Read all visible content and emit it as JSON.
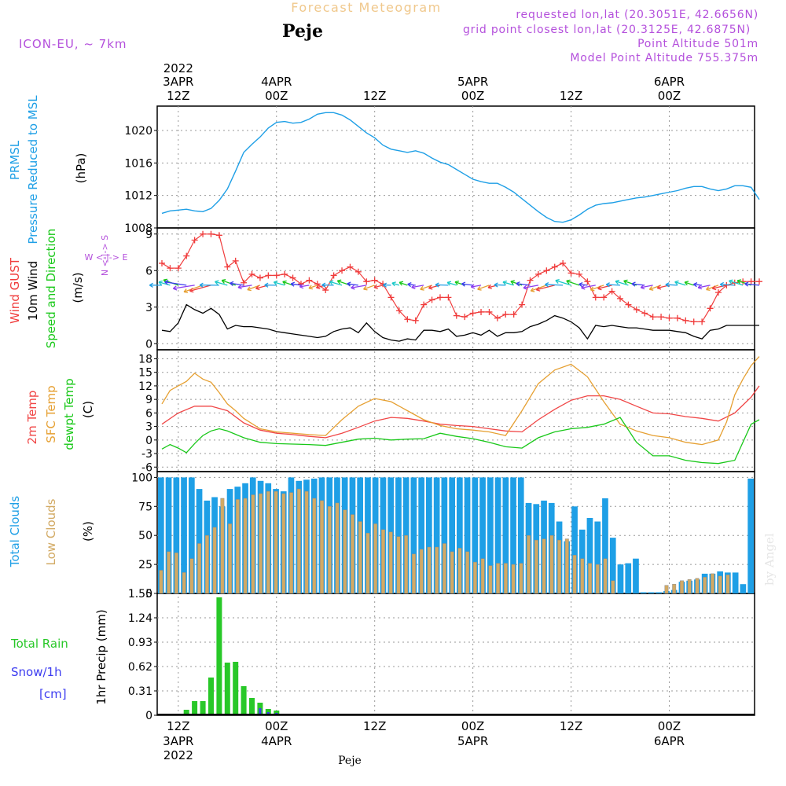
{
  "header": {
    "title": "Forecast Meteogram",
    "location": "Peje",
    "model": "ICON-EU, ~ 7km",
    "requested": "requested lon,lat (20.3051E, 42.6656N)",
    "grid_point": "grid point closest lon,lat (20.3125E, 42.6875N)",
    "point_altitude": "Point Altitude 501m",
    "model_altitude": "Model Point Altitude 755.375m",
    "footer_location": "Peje",
    "watermark": "by Angel"
  },
  "time_axis": {
    "start_hours": 0,
    "end_hours": 73,
    "ticks": [
      {
        "h": 2,
        "time": "12Z",
        "date": "3APR",
        "year": "2022"
      },
      {
        "h": 14,
        "time": "00Z",
        "date": "4APR",
        "year": ""
      },
      {
        "h": 26,
        "time": "12Z",
        "date": "",
        "year": ""
      },
      {
        "h": 38,
        "time": "00Z",
        "date": "5APR",
        "year": ""
      },
      {
        "h": 50,
        "time": "12Z",
        "date": "",
        "year": ""
      },
      {
        "h": 62,
        "time": "00Z",
        "date": "6APR",
        "year": ""
      }
    ]
  },
  "panel_labels": {
    "pressure": {
      "title1": "PRMSL",
      "title2": "Pressure Reduced to MSL",
      "unit": "(hPa)"
    },
    "wind": {
      "title1": "Wind GUST",
      "title2": "10m Wind",
      "title3": "Speed and Direction",
      "unit": "(m/s)",
      "compass": "W <-|-> E",
      "compass_n": "N <-|-> S"
    },
    "temp": {
      "title1": "2m Temp",
      "title2": "SFC Temp",
      "title3": "dewpt Temp",
      "unit": "(C)"
    },
    "clouds": {
      "title1": "Total Clouds",
      "title2": "Low Clouds",
      "unit": "(%)"
    },
    "precip": {
      "title1": "Total  Rain",
      "title2": "Snow/1h",
      "title3": "[cm]",
      "unit": "1hr Precip (mm)"
    }
  },
  "colors": {
    "pressure": "#1E9FE6",
    "gust": "#F03C3C",
    "wind": "#000000",
    "temp2m": "#F04646",
    "sfc": "#E6A032",
    "dewpt": "#19C819",
    "total_clouds": "#1E9FE6",
    "low_clouds": "#D2AA64",
    "rain": "#28C828",
    "snow": "#3C3CF0",
    "title": "#F0C88C",
    "info": "#B450DC"
  },
  "chart_data": [
    {
      "type": "line",
      "name": "pressure",
      "title": "PRMSL Pressure Reduced to MSL",
      "ylabel": "hPa",
      "ylim": [
        1008,
        1023
      ],
      "yticks": [
        1008,
        1012,
        1016,
        1020
      ],
      "x": [
        0,
        1,
        2,
        3,
        4,
        5,
        6,
        7,
        8,
        9,
        10,
        11,
        12,
        13,
        14,
        15,
        16,
        17,
        18,
        19,
        20,
        21,
        22,
        23,
        24,
        25,
        26,
        27,
        28,
        29,
        30,
        31,
        32,
        33,
        34,
        35,
        36,
        37,
        38,
        39,
        40,
        41,
        42,
        43,
        44,
        45,
        46,
        47,
        48,
        49,
        50,
        51,
        52,
        53,
        54,
        55,
        56,
        57,
        58,
        59,
        60,
        61,
        62,
        63,
        64,
        65,
        66,
        67,
        68,
        69,
        70,
        71,
        72,
        73
      ],
      "values": [
        1009.8,
        1010.1,
        1010.2,
        1010.3,
        1010.1,
        1010.0,
        1010.4,
        1011.4,
        1012.8,
        1015.0,
        1017.3,
        1018.3,
        1019.2,
        1020.3,
        1021.0,
        1021.1,
        1020.9,
        1021.0,
        1021.4,
        1022.0,
        1022.2,
        1022.2,
        1021.9,
        1021.3,
        1020.5,
        1019.7,
        1019.1,
        1018.2,
        1017.7,
        1017.5,
        1017.3,
        1017.5,
        1017.2,
        1016.6,
        1016.1,
        1015.8,
        1015.2,
        1014.6,
        1014.0,
        1013.7,
        1013.5,
        1013.5,
        1013.0,
        1012.4,
        1011.6,
        1010.8,
        1010.0,
        1009.3,
        1008.8,
        1008.7,
        1009.0,
        1009.6,
        1010.3,
        1010.8,
        1011.0,
        1011.1,
        1011.3,
        1011.5,
        1011.7,
        1011.8,
        1012.0,
        1012.2,
        1012.4,
        1012.6,
        1012.9,
        1013.1,
        1013.1,
        1012.8,
        1012.6,
        1012.8,
        1013.2,
        1013.2,
        1013.0,
        1011.5
      ]
    },
    {
      "type": "line",
      "name": "wind",
      "title": "Wind GUST / 10m Wind Speed and Direction",
      "ylabel": "m/s",
      "ylim": [
        -0.5,
        9.5
      ],
      "yticks": [
        0,
        3,
        6,
        9
      ],
      "series": [
        {
          "name": "Wind GUST",
          "color": "#F03C3C",
          "marker": "+",
          "x": [
            0,
            1,
            2,
            3,
            4,
            5,
            6,
            7,
            8,
            9,
            10,
            11,
            12,
            13,
            14,
            15,
            16,
            17,
            18,
            19,
            20,
            21,
            22,
            23,
            24,
            25,
            26,
            27,
            28,
            29,
            30,
            31,
            32,
            33,
            34,
            35,
            36,
            37,
            38,
            39,
            40,
            41,
            42,
            43,
            44,
            45,
            46,
            47,
            48,
            49,
            50,
            51,
            52,
            53,
            54,
            55,
            56,
            57,
            58,
            59,
            60,
            61,
            62,
            63,
            64,
            65,
            66,
            67,
            68,
            69,
            70,
            71,
            72,
            73
          ],
          "values": [
            6.6,
            6.2,
            6.2,
            7.2,
            8.5,
            9.0,
            9.0,
            8.9,
            6.3,
            6.8,
            5.0,
            5.7,
            5.4,
            5.6,
            5.6,
            5.7,
            5.4,
            4.9,
            5.2,
            4.9,
            4.4,
            5.6,
            6.0,
            6.3,
            5.9,
            5.1,
            5.2,
            4.9,
            3.8,
            2.7,
            2.0,
            1.9,
            3.2,
            3.6,
            3.8,
            3.8,
            2.3,
            2.2,
            2.5,
            2.6,
            2.6,
            2.1,
            2.4,
            2.4,
            3.2,
            5.2,
            5.7,
            6.0,
            6.3,
            6.6,
            5.8,
            5.7,
            5.1,
            3.8,
            3.8,
            4.3,
            3.7,
            3.2,
            2.8,
            2.5,
            2.2,
            2.2,
            2.1,
            2.1,
            1.9,
            1.8,
            1.8,
            2.9,
            4.2,
            4.8,
            5.0,
            5.1,
            5.1,
            5.1
          ]
        },
        {
          "name": "10m Wind",
          "color": "#000000",
          "x": [
            0,
            1,
            2,
            3,
            4,
            5,
            6,
            7,
            8,
            9,
            10,
            11,
            12,
            13,
            14,
            15,
            16,
            17,
            18,
            19,
            20,
            21,
            22,
            23,
            24,
            25,
            26,
            27,
            28,
            29,
            30,
            31,
            32,
            33,
            34,
            35,
            36,
            37,
            38,
            39,
            40,
            41,
            42,
            43,
            44,
            45,
            46,
            47,
            48,
            49,
            50,
            51,
            52,
            53,
            54,
            55,
            56,
            57,
            58,
            59,
            60,
            61,
            62,
            63,
            64,
            65,
            66,
            67,
            68,
            69,
            70,
            71,
            72,
            73
          ],
          "values": [
            1.1,
            1.0,
            1.7,
            3.2,
            2.8,
            2.5,
            2.9,
            2.4,
            1.2,
            1.5,
            1.4,
            1.4,
            1.3,
            1.2,
            1.0,
            0.9,
            0.8,
            0.7,
            0.6,
            0.5,
            0.6,
            1.0,
            1.2,
            1.3,
            0.9,
            1.7,
            1.0,
            0.5,
            0.3,
            0.2,
            0.4,
            0.3,
            1.1,
            1.1,
            1.0,
            1.2,
            0.6,
            0.7,
            0.9,
            0.7,
            1.1,
            0.6,
            0.9,
            0.9,
            1.0,
            1.4,
            1.6,
            1.9,
            2.3,
            2.1,
            1.8,
            1.3,
            0.4,
            1.5,
            1.4,
            1.5,
            1.4,
            1.3,
            1.3,
            1.2,
            1.1,
            1.1,
            1.1,
            1.0,
            0.9,
            0.6,
            0.4,
            1.1,
            1.2,
            1.5,
            1.5,
            1.5,
            1.5,
            1.5
          ]
        }
      ]
    },
    {
      "type": "line",
      "name": "temperature",
      "title": "2m Temp / SFC Temp / dewpt Temp",
      "ylabel": "C",
      "ylim": [
        -7,
        20
      ],
      "yticks": [
        -6,
        -3,
        0,
        3,
        6,
        9,
        12,
        15,
        18
      ],
      "series": [
        {
          "name": "2m Temp",
          "color": "#F04646",
          "x": [
            0,
            2,
            4,
            6,
            8,
            10,
            12,
            14,
            16,
            18,
            20,
            22,
            24,
            26,
            28,
            30,
            32,
            34,
            36,
            38,
            40,
            42,
            44,
            46,
            48,
            50,
            52,
            54,
            56,
            58,
            60,
            62,
            64,
            66,
            68,
            70,
            72,
            73
          ],
          "values": [
            3.5,
            6.0,
            7.5,
            7.5,
            6.5,
            3.8,
            2.2,
            1.5,
            1.2,
            0.8,
            0.5,
            1.5,
            2.8,
            4.2,
            5.0,
            4.8,
            4.2,
            3.5,
            3.2,
            3.0,
            2.5,
            2.0,
            1.8,
            4.5,
            6.8,
            8.8,
            9.8,
            9.8,
            9.0,
            7.5,
            6.0,
            5.8,
            5.2,
            4.8,
            4.2,
            6.0,
            9.5,
            12.0
          ]
        },
        {
          "name": "SFC Temp",
          "color": "#E6A032",
          "x": [
            0,
            1,
            2,
            3,
            4,
            5,
            6,
            7,
            8,
            9,
            10,
            12,
            14,
            16,
            18,
            20,
            22,
            24,
            26,
            28,
            30,
            32,
            34,
            36,
            38,
            40,
            42,
            44,
            46,
            48,
            50,
            52,
            54,
            56,
            58,
            60,
            62,
            64,
            66,
            68,
            69,
            70,
            71,
            72,
            73
          ],
          "values": [
            8.0,
            11.0,
            12.0,
            13.0,
            14.8,
            13.5,
            12.8,
            10.5,
            8.0,
            6.5,
            4.8,
            2.5,
            1.8,
            1.5,
            1.2,
            1.0,
            4.5,
            7.5,
            9.2,
            8.5,
            6.5,
            4.5,
            3.2,
            2.5,
            2.2,
            1.8,
            1.0,
            6.5,
            12.5,
            15.5,
            16.8,
            14.0,
            8.5,
            3.5,
            2.0,
            1.0,
            0.5,
            -0.5,
            -1.0,
            0.0,
            4.0,
            10.0,
            13.5,
            16.5,
            18.5
          ]
        },
        {
          "name": "dewpt Temp",
          "color": "#19C819",
          "x": [
            0,
            1,
            2,
            3,
            4,
            5,
            6,
            7,
            8,
            10,
            12,
            14,
            16,
            18,
            20,
            22,
            24,
            26,
            28,
            30,
            32,
            34,
            36,
            38,
            40,
            42,
            44,
            46,
            48,
            50,
            52,
            54,
            56,
            58,
            60,
            62,
            64,
            66,
            68,
            70,
            72,
            73
          ],
          "values": [
            -2.0,
            -1.0,
            -1.8,
            -2.8,
            -0.8,
            1.0,
            2.0,
            2.5,
            2.0,
            0.5,
            -0.5,
            -0.8,
            -0.9,
            -1.0,
            -1.2,
            -0.5,
            0.2,
            0.4,
            0.0,
            0.2,
            0.3,
            1.5,
            0.8,
            0.3,
            -0.5,
            -1.5,
            -1.8,
            0.5,
            1.8,
            2.5,
            2.8,
            3.5,
            5.0,
            -0.5,
            -3.5,
            -3.5,
            -4.5,
            -5.0,
            -5.2,
            -4.5,
            3.5,
            4.5
          ]
        }
      ]
    },
    {
      "type": "bar",
      "name": "clouds",
      "title": "Total Clouds / Low Clouds",
      "ylabel": "%",
      "ylim": [
        0,
        105
      ],
      "yticks": [
        0,
        25,
        50,
        75,
        100
      ],
      "series": [
        {
          "name": "Total Clouds",
          "color": "#1E9FE6",
          "values": [
            100,
            100,
            100,
            100,
            100,
            90,
            80,
            83,
            75,
            90,
            92,
            95,
            100,
            97,
            95,
            90,
            88,
            100,
            97,
            98,
            99,
            100,
            100,
            100,
            100,
            100,
            100,
            100,
            100,
            100,
            100,
            100,
            100,
            100,
            100,
            100,
            100,
            100,
            100,
            100,
            100,
            100,
            100,
            100,
            100,
            100,
            100,
            100,
            78,
            77,
            80,
            78,
            62,
            45,
            75,
            55,
            65,
            62,
            82,
            48,
            25,
            26,
            30,
            1,
            1,
            1,
            2,
            3,
            10,
            11,
            12,
            17,
            17,
            19,
            18,
            18,
            8,
            99
          ]
        },
        {
          "name": "Low Clouds",
          "color": "#D2AA64",
          "values": [
            20,
            36,
            35,
            18,
            30,
            43,
            50,
            57,
            82,
            60,
            81,
            82,
            85,
            86,
            88,
            88,
            86,
            87,
            90,
            88,
            82,
            80,
            75,
            78,
            72,
            68,
            62,
            52,
            60,
            55,
            53,
            49,
            50,
            34,
            38,
            40,
            40,
            43,
            36,
            39,
            36,
            27,
            30,
            24,
            26,
            26,
            25,
            26,
            50,
            46,
            47,
            50,
            46,
            47,
            33,
            30,
            26,
            25,
            30,
            11,
            0,
            0,
            0,
            0,
            0,
            0,
            7,
            8,
            11,
            12,
            13,
            14,
            17,
            15,
            16,
            0,
            0,
            0
          ]
        }
      ]
    },
    {
      "type": "bar",
      "name": "precipitation",
      "title": "1hr Precip (mm)",
      "ylabel": "mm",
      "ylim": [
        0,
        1.55
      ],
      "yticks": [
        0,
        0.31,
        0.62,
        0.93,
        1.24,
        1.55
      ],
      "series": [
        {
          "name": "Total Rain",
          "color": "#28C828",
          "x": [
            3,
            4,
            5,
            6,
            7,
            8,
            9,
            10,
            11,
            12,
            13,
            14,
            15,
            16,
            28
          ],
          "values": [
            0.07,
            0.18,
            0.18,
            0.48,
            1.5,
            0.67,
            0.68,
            0.37,
            0.22,
            0.16,
            0.08,
            0.06,
            0.01,
            0.01,
            0.01
          ]
        },
        {
          "name": "Snow/1h",
          "color": "#3C3CF0",
          "x": [
            12,
            13,
            14,
            15
          ],
          "values": [
            0.09,
            0.04,
            0.03,
            0.01
          ]
        }
      ]
    }
  ]
}
